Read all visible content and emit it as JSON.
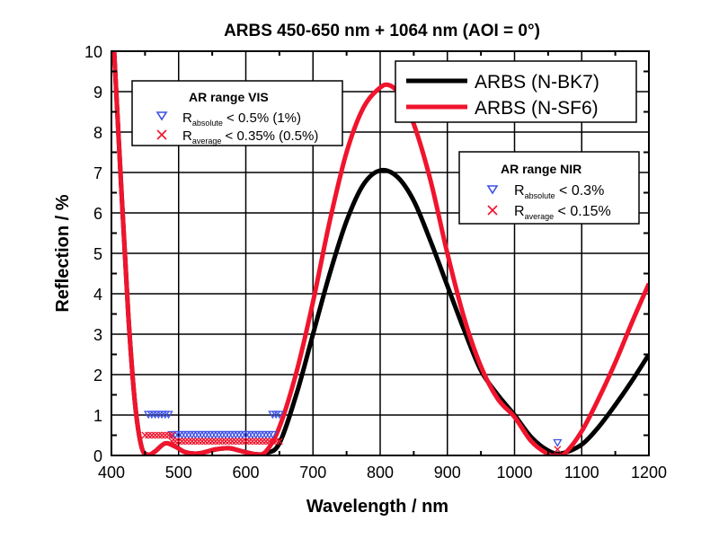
{
  "chart_data": {
    "type": "line",
    "title": "ARBS 450-650 nm + 1064 nm (AOI = 0°)",
    "xlabel": "Wavelength / nm",
    "ylabel": "Reflection / %",
    "xlim": [
      400,
      1200
    ],
    "ylim": [
      0,
      10
    ],
    "xticks": [
      400,
      500,
      600,
      700,
      800,
      900,
      1000,
      1100,
      1200
    ],
    "yticks": [
      0,
      1,
      2,
      3,
      4,
      5,
      6,
      7,
      8,
      9,
      10
    ],
    "grid": true,
    "legend_placement": "top-right",
    "series": [
      {
        "name": "ARBS (N-BK7)",
        "color": "#000000",
        "x": [
          404,
          415,
          425,
          435,
          445,
          455,
          465,
          480,
          495,
          510,
          530,
          555,
          575,
          595,
          615,
          630,
          650,
          676,
          700,
          725,
          750,
          775,
          800,
          825,
          850,
          875,
          900,
          925,
          950,
          975,
          1000,
          1025,
          1050,
          1070,
          1100,
          1125,
          1150,
          1175,
          1200
        ],
        "y": [
          10,
          6.5,
          3.5,
          1.3,
          0.2,
          0.02,
          0.1,
          0.3,
          0.22,
          0.08,
          0.05,
          0.15,
          0.18,
          0.1,
          0.03,
          0.06,
          0.3,
          1.55,
          3.0,
          4.5,
          5.8,
          6.7,
          7.05,
          6.9,
          6.3,
          5.3,
          4.2,
          3.1,
          2.1,
          1.5,
          1.0,
          0.45,
          0.12,
          0.05,
          0.27,
          0.7,
          1.25,
          1.85,
          2.5
        ]
      },
      {
        "name": "ARBS (N-SF6)",
        "color": "#f0142d",
        "x": [
          404,
          415,
          425,
          435,
          445,
          455,
          465,
          480,
          495,
          510,
          530,
          555,
          575,
          595,
          615,
          630,
          650,
          676,
          700,
          725,
          750,
          775,
          800,
          815,
          830,
          850,
          875,
          900,
          925,
          950,
          975,
          1000,
          1025,
          1050,
          1062,
          1075,
          1100,
          1125,
          1150,
          1175,
          1200
        ],
        "y": [
          10,
          6.5,
          3.5,
          1.3,
          0.2,
          0.02,
          0.1,
          0.3,
          0.22,
          0.08,
          0.05,
          0.15,
          0.18,
          0.1,
          0.03,
          0.1,
          0.7,
          2.1,
          3.8,
          5.8,
          7.5,
          8.6,
          9.1,
          9.15,
          8.9,
          8.2,
          6.8,
          5.0,
          3.4,
          2.2,
          1.4,
          0.95,
          0.35,
          0.03,
          0.0,
          0.05,
          0.6,
          1.4,
          2.3,
          3.3,
          4.25
        ]
      }
    ],
    "spec_markers": [
      {
        "type": "triangle",
        "color": "#3c50e6",
        "y": 1.0,
        "x_from": 455,
        "x_to": 485
      },
      {
        "type": "triangle",
        "color": "#3c50e6",
        "y": 0.5,
        "x_from": 490,
        "x_to": 640
      },
      {
        "type": "triangle",
        "color": "#3c50e6",
        "y": 1.0,
        "x_from": 640,
        "x_to": 650
      },
      {
        "type": "cross",
        "color": "#f0142d",
        "y": 0.5,
        "x_from": 450,
        "x_to": 490
      },
      {
        "type": "cross",
        "color": "#f0142d",
        "y": 0.35,
        "x_from": 490,
        "x_to": 650
      },
      {
        "type": "triangle",
        "color": "#3c50e6",
        "y": 0.3,
        "x_from": 1064,
        "x_to": 1064
      },
      {
        "type": "cross",
        "color": "#f0142d",
        "y": 0.15,
        "x_from": 1064,
        "x_to": 1064
      }
    ],
    "legend": {
      "entries": [
        "ARBS (N-BK7)",
        "ARBS (N-SF6)"
      ]
    },
    "vis_box": {
      "title": "AR range VIS",
      "abs_R": "R",
      "abs_sub": "absolute",
      "abs_text": " < 0.5% (1%)",
      "avg_R": "R",
      "avg_sub": "average",
      "avg_text": " < 0.35% (0.5%)"
    },
    "nir_box": {
      "title": "AR range NIR",
      "abs_R": "R",
      "abs_sub": "absolute",
      "abs_text": " < 0.3%",
      "avg_R": "R",
      "avg_sub": "average",
      "avg_text": " < 0.15%"
    }
  }
}
